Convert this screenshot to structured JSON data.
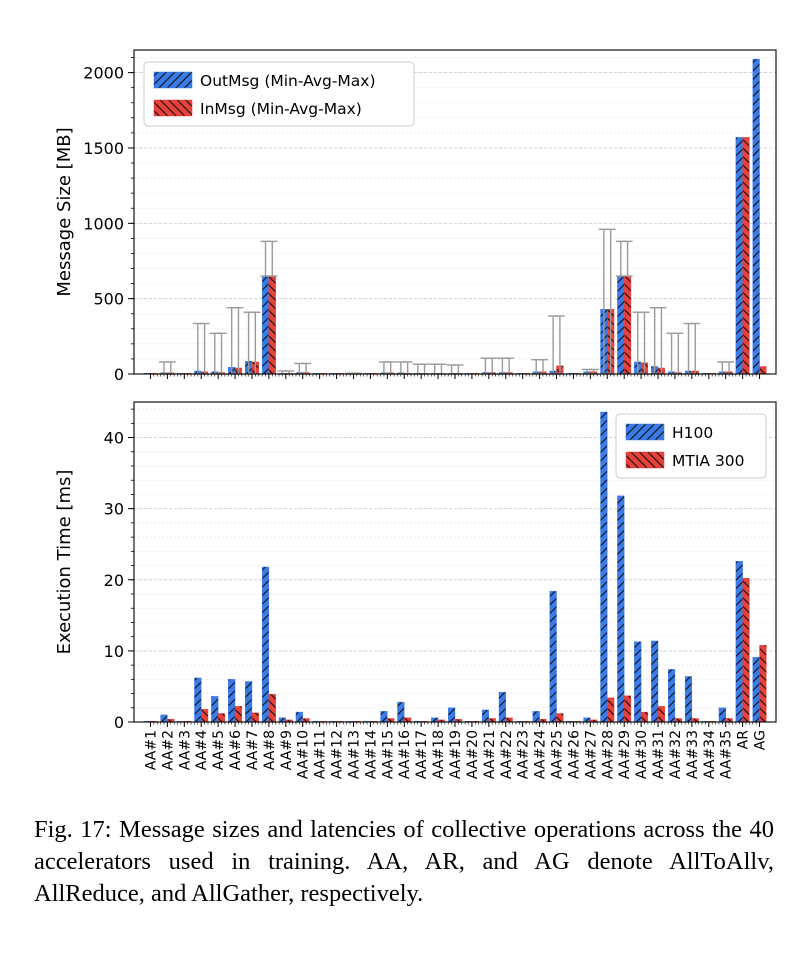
{
  "colors": {
    "h100": "#3b7be8",
    "mtia": "#e8413c",
    "hatch": "#111111",
    "errbar": "#9a9a9a",
    "grid": "#cfcfcf"
  },
  "caption": {
    "label": "Fig. 17:",
    "text": "Message sizes and latencies of collective operations across the 40 accelerators used in training. AA, AR, and AG denote AllToAllv, AllReduce, and AllGather, respectively."
  },
  "chart_data": [
    {
      "type": "bar",
      "ylabel": "Message Size [MB]",
      "ylim": [
        0,
        2150
      ],
      "yticks": [
        0,
        500,
        1000,
        1500,
        2000
      ],
      "grid": true,
      "legend_position": "top-left",
      "categories": [
        "AA#1",
        "AA#2",
        "AA#3",
        "AA#4",
        "AA#5",
        "AA#6",
        "AA#7",
        "AA#8",
        "AA#9",
        "AA#10",
        "AA#11",
        "AA#12",
        "AA#13",
        "AA#14",
        "AA#15",
        "AA#16",
        "AA#17",
        "AA#18",
        "AA#19",
        "AA#20",
        "AA#21",
        "AA#22",
        "AA#23",
        "AA#24",
        "AA#25",
        "AA#26",
        "AA#27",
        "AA#28",
        "AA#29",
        "AA#30",
        "AA#31",
        "AA#32",
        "AA#33",
        "AA#34",
        "AA#35",
        "AR",
        "AG"
      ],
      "series": [
        {
          "name": "OutMsg (Min-Avg-Max)",
          "values": [
            0,
            8,
            0,
            20,
            15,
            45,
            85,
            650,
            5,
            10,
            0,
            0,
            3,
            0,
            8,
            8,
            3,
            5,
            5,
            0,
            10,
            10,
            0,
            15,
            20,
            0,
            15,
            430,
            650,
            80,
            50,
            15,
            20,
            0,
            15,
            1570,
            2090
          ],
          "min": [
            0,
            0,
            0,
            0,
            0,
            0,
            0,
            650,
            0,
            0,
            0,
            0,
            0,
            0,
            0,
            0,
            0,
            0,
            0,
            0,
            0,
            0,
            0,
            0,
            0,
            0,
            0,
            0,
            650,
            0,
            0,
            0,
            0,
            0,
            0,
            1570,
            2090
          ],
          "max": [
            0,
            80,
            0,
            335,
            270,
            440,
            410,
            880,
            20,
            70,
            0,
            0,
            5,
            0,
            80,
            80,
            65,
            65,
            60,
            0,
            105,
            105,
            0,
            95,
            385,
            0,
            30,
            960,
            880,
            410,
            440,
            270,
            335,
            0,
            80,
            1570,
            2090
          ]
        },
        {
          "name": "InMsg (Min-Avg-Max)",
          "values": [
            0,
            8,
            0,
            15,
            10,
            40,
            80,
            650,
            5,
            10,
            0,
            0,
            3,
            0,
            8,
            5,
            3,
            5,
            5,
            0,
            10,
            10,
            0,
            15,
            55,
            0,
            15,
            430,
            650,
            75,
            40,
            10,
            20,
            0,
            15,
            1570,
            50
          ],
          "min": [
            0,
            0,
            0,
            0,
            0,
            0,
            0,
            650,
            0,
            0,
            0,
            0,
            0,
            0,
            0,
            0,
            0,
            0,
            0,
            0,
            0,
            0,
            0,
            0,
            0,
            0,
            0,
            0,
            650,
            0,
            0,
            0,
            0,
            0,
            0,
            1570,
            50
          ],
          "max": [
            0,
            80,
            0,
            335,
            270,
            440,
            410,
            880,
            20,
            70,
            0,
            0,
            5,
            0,
            80,
            80,
            65,
            65,
            60,
            0,
            105,
            105,
            0,
            95,
            385,
            0,
            30,
            960,
            880,
            410,
            440,
            270,
            335,
            0,
            80,
            1570,
            50
          ]
        }
      ]
    },
    {
      "type": "bar",
      "ylabel": "Execution Time [ms]",
      "ylim": [
        0,
        45
      ],
      "yticks": [
        0,
        10,
        20,
        30,
        40
      ],
      "grid": true,
      "legend_position": "top-right",
      "categories": [
        "AA#1",
        "AA#2",
        "AA#3",
        "AA#4",
        "AA#5",
        "AA#6",
        "AA#7",
        "AA#8",
        "AA#9",
        "AA#10",
        "AA#11",
        "AA#12",
        "AA#13",
        "AA#14",
        "AA#15",
        "AA#16",
        "AA#17",
        "AA#18",
        "AA#19",
        "AA#20",
        "AA#21",
        "AA#22",
        "AA#23",
        "AA#24",
        "AA#25",
        "AA#26",
        "AA#27",
        "AA#28",
        "AA#29",
        "AA#30",
        "AA#31",
        "AA#32",
        "AA#33",
        "AA#34",
        "AA#35",
        "AR",
        "AG"
      ],
      "series": [
        {
          "name": "H100",
          "values": [
            0.1,
            1.0,
            0.1,
            6.2,
            3.6,
            6.0,
            5.7,
            21.8,
            0.6,
            1.4,
            0.1,
            0.1,
            0.1,
            0.1,
            1.5,
            2.8,
            0.1,
            0.6,
            2.0,
            0.1,
            1.7,
            4.2,
            0.1,
            1.5,
            18.4,
            0.1,
            0.6,
            43.6,
            31.8,
            11.3,
            11.4,
            7.4,
            6.4,
            0.1,
            2.0,
            22.6,
            9.1
          ]
        },
        {
          "name": "MTIA 300",
          "values": [
            0.1,
            0.4,
            0.1,
            1.8,
            1.2,
            2.2,
            1.3,
            3.9,
            0.3,
            0.5,
            0.1,
            0.1,
            0.1,
            0.1,
            0.5,
            0.6,
            0.1,
            0.3,
            0.4,
            0.1,
            0.5,
            0.6,
            0.1,
            0.4,
            1.2,
            0.1,
            0.3,
            3.4,
            3.7,
            1.4,
            2.2,
            0.5,
            0.5,
            0.1,
            0.5,
            20.2,
            10.8
          ]
        }
      ]
    }
  ]
}
